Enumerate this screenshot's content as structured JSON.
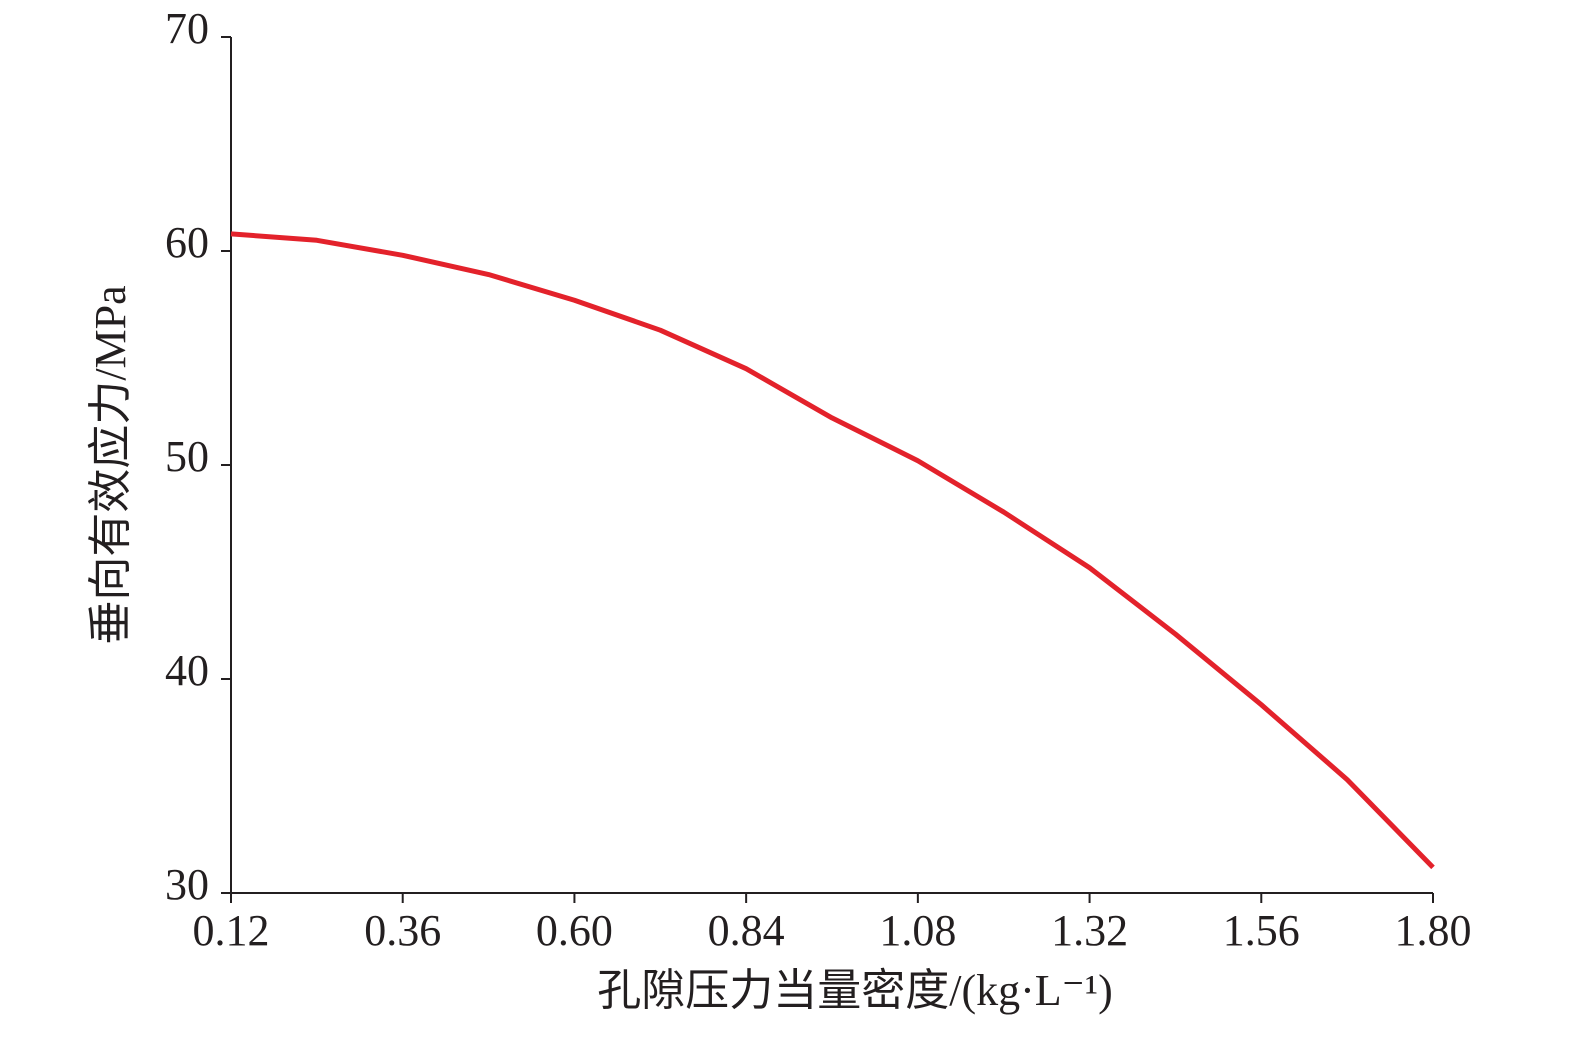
{
  "chart_data": {
    "type": "line",
    "x_label": "孔隙压力当量密度/(kg·L⁻¹)",
    "y_label": "垂向有效应力/MPa",
    "x": [
      0.12,
      0.24,
      0.36,
      0.48,
      0.6,
      0.72,
      0.84,
      0.96,
      1.08,
      1.2,
      1.32,
      1.44,
      1.56,
      1.68,
      1.8
    ],
    "values": [
      60.8,
      60.5,
      59.8,
      58.9,
      57.7,
      56.3,
      54.5,
      52.2,
      50.2,
      47.8,
      45.2,
      42.1,
      38.8,
      35.3,
      31.2
    ],
    "color": "#e3222b",
    "xlim": [
      0.12,
      1.8
    ],
    "xticks": [
      0.12,
      0.36,
      {
        "value": 0.6,
        "label": "0.60"
      },
      0.84,
      1.08,
      1.32,
      1.56,
      {
        "value": 1.8,
        "label": "1.80"
      }
    ],
    "ylim": [
      30,
      70
    ],
    "yticks": [
      30,
      40,
      50,
      60,
      70
    ],
    "grid": false
  }
}
